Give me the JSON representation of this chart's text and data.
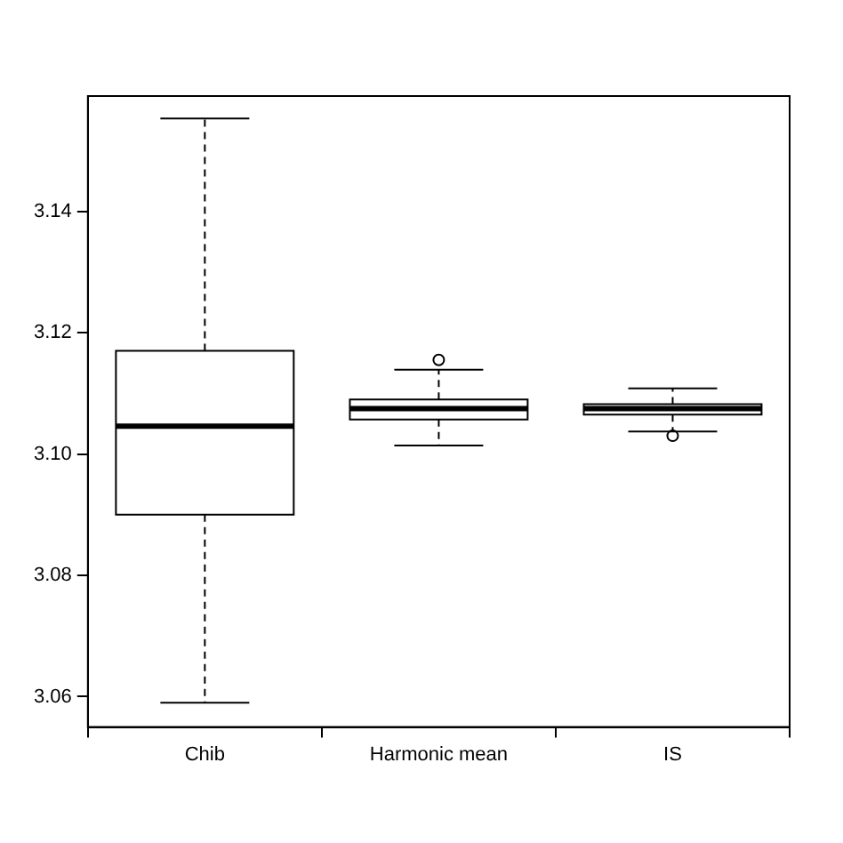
{
  "chart_data": {
    "type": "box",
    "categories": [
      "Chib",
      "Harmonic mean",
      "IS"
    ],
    "boxes": [
      {
        "low": 3.059,
        "q1": 3.09,
        "median": 3.1046,
        "q3": 3.117,
        "high": 3.1553
      },
      {
        "low": 3.1014,
        "q1": 3.1057,
        "median": 3.1075,
        "q3": 3.109,
        "high": 3.1139,
        "outliers": [
          3.1155
        ]
      },
      {
        "low": 3.1037,
        "q1": 3.1065,
        "median": 3.1075,
        "q3": 3.1082,
        "high": 3.1108,
        "outliers": [
          3.103
        ]
      }
    ],
    "color": "#000000",
    "ylim": [
      3.055,
      3.159
    ],
    "yticks": [
      3.06,
      3.08,
      {
        "value": 3.1,
        "label": "3.10"
      },
      3.12,
      3.14
    ],
    "grid": false,
    "legend": false
  }
}
